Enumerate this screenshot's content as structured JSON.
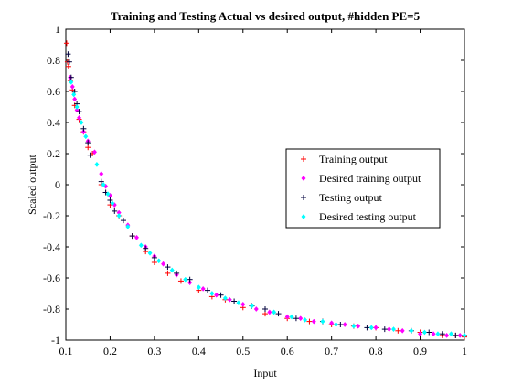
{
  "chart_data": {
    "type": "scatter",
    "title": "Training and Testing Actual vs desired output, #hidden PE=5",
    "xlabel": "Input",
    "ylabel": "Scaled output",
    "xlim": [
      0.1,
      1
    ],
    "ylim": [
      -1,
      1
    ],
    "xticks": [
      "0.1",
      "0.2",
      "0.3",
      "0.4",
      "0.5",
      "0.6",
      "0.7",
      "0.8",
      "0.9",
      "1"
    ],
    "yticks": [
      "-1",
      "-0.8",
      "-0.6",
      "-0.4",
      "-0.2",
      "0",
      "0.2",
      "0.4",
      "0.6",
      "0.8",
      "1"
    ],
    "grid": false,
    "legend_position": "right",
    "series": [
      {
        "name": "Training output",
        "marker": "+",
        "color": "#ff0000",
        "x": [
          0.102,
          0.104,
          0.106,
          0.11,
          0.115,
          0.12,
          0.13,
          0.14,
          0.15,
          0.16,
          0.18,
          0.19,
          0.2,
          0.22,
          0.25,
          0.28,
          0.3,
          0.33,
          0.36,
          0.4,
          0.43,
          0.46,
          0.5,
          0.55,
          0.6,
          0.65,
          0.7,
          0.75,
          0.8,
          0.85,
          0.9,
          0.95,
          0.98,
          1.0
        ],
        "y": [
          0.91,
          0.79,
          0.76,
          0.67,
          0.61,
          0.51,
          0.42,
          0.34,
          0.24,
          0.2,
          0.0,
          -0.05,
          -0.13,
          -0.2,
          -0.33,
          -0.43,
          -0.5,
          -0.57,
          -0.62,
          -0.68,
          -0.72,
          -0.74,
          -0.79,
          -0.83,
          -0.86,
          -0.88,
          -0.9,
          -0.91,
          -0.92,
          -0.94,
          -0.95,
          -0.97,
          -0.97,
          -0.98
        ]
      },
      {
        "name": "Desired training output",
        "marker": "diamond",
        "color": "#ff00ff",
        "x": [
          0.11,
          0.115,
          0.12,
          0.125,
          0.13,
          0.14,
          0.15,
          0.165,
          0.18,
          0.19,
          0.2,
          0.21,
          0.22,
          0.24,
          0.26,
          0.28,
          0.3,
          0.32,
          0.35,
          0.38,
          0.41,
          0.44,
          0.47,
          0.5,
          0.53,
          0.56,
          0.6,
          0.63,
          0.66,
          0.7,
          0.73,
          0.76,
          0.8,
          0.83,
          0.86,
          0.9,
          0.93,
          0.96,
          0.99
        ],
        "y": [
          0.69,
          0.63,
          0.55,
          0.48,
          0.43,
          0.34,
          0.28,
          0.21,
          0.07,
          -0.01,
          -0.07,
          -0.13,
          -0.18,
          -0.26,
          -0.34,
          -0.4,
          -0.46,
          -0.51,
          -0.58,
          -0.63,
          -0.67,
          -0.71,
          -0.74,
          -0.77,
          -0.8,
          -0.82,
          -0.85,
          -0.86,
          -0.88,
          -0.89,
          -0.9,
          -0.91,
          -0.92,
          -0.93,
          -0.94,
          -0.96,
          -0.96,
          -0.97,
          -0.97
        ]
      },
      {
        "name": "Testing output",
        "marker": "+",
        "color": "#00003c",
        "x": [
          0.105,
          0.108,
          0.112,
          0.12,
          0.125,
          0.13,
          0.14,
          0.15,
          0.155,
          0.18,
          0.19,
          0.2,
          0.21,
          0.23,
          0.25,
          0.28,
          0.3,
          0.33,
          0.35,
          0.38,
          0.42,
          0.45,
          0.48,
          0.52,
          0.55,
          0.58,
          0.62,
          0.68,
          0.72,
          0.78,
          0.82,
          0.88,
          0.92,
          0.95,
          0.98,
          1.0
        ],
        "y": [
          0.84,
          0.79,
          0.69,
          0.6,
          0.52,
          0.47,
          0.36,
          0.27,
          0.19,
          0.02,
          -0.05,
          -0.1,
          -0.17,
          -0.23,
          -0.33,
          -0.41,
          -0.47,
          -0.53,
          -0.57,
          -0.61,
          -0.68,
          -0.71,
          -0.75,
          -0.78,
          -0.8,
          -0.83,
          -0.86,
          -0.88,
          -0.9,
          -0.92,
          -0.93,
          -0.94,
          -0.95,
          -0.96,
          -0.97,
          -0.97
        ]
      },
      {
        "name": "Desired testing output",
        "marker": "diamond",
        "color": "#00ffff",
        "x": [
          0.112,
          0.118,
          0.125,
          0.135,
          0.145,
          0.17,
          0.185,
          0.195,
          0.205,
          0.22,
          0.24,
          0.27,
          0.29,
          0.31,
          0.34,
          0.37,
          0.4,
          0.43,
          0.46,
          0.49,
          0.52,
          0.57,
          0.61,
          0.64,
          0.68,
          0.71,
          0.75,
          0.79,
          0.84,
          0.88,
          0.91,
          0.94,
          0.97,
          1.0
        ],
        "y": [
          0.66,
          0.58,
          0.5,
          0.4,
          0.31,
          0.13,
          0.0,
          -0.06,
          -0.12,
          -0.2,
          -0.27,
          -0.39,
          -0.44,
          -0.49,
          -0.55,
          -0.61,
          -0.66,
          -0.7,
          -0.73,
          -0.76,
          -0.78,
          -0.82,
          -0.85,
          -0.87,
          -0.88,
          -0.9,
          -0.91,
          -0.92,
          -0.93,
          -0.94,
          -0.95,
          -0.96,
          -0.96,
          -0.97
        ]
      }
    ]
  }
}
